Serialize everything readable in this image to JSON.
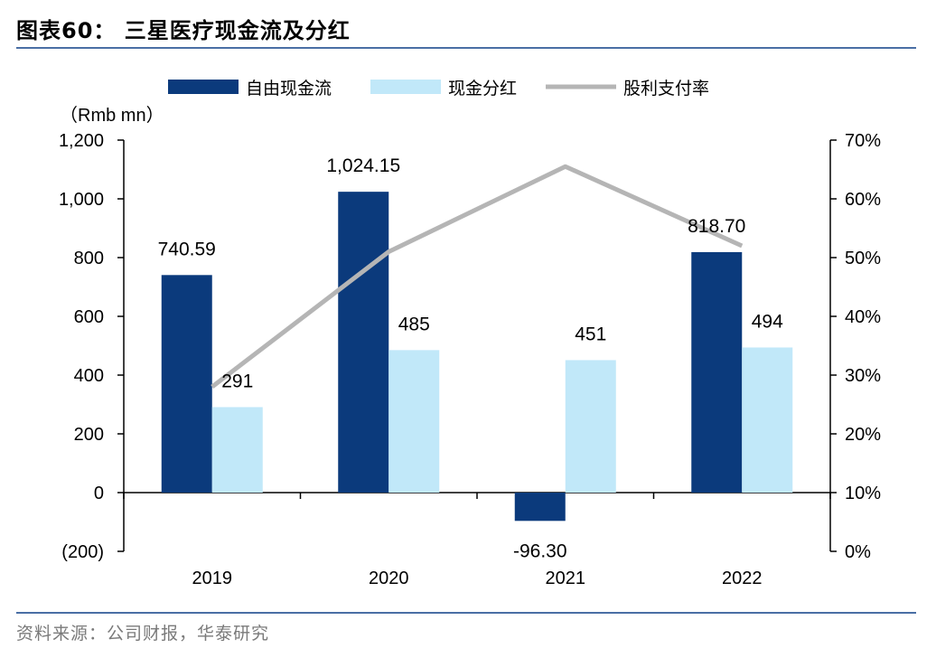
{
  "header": {
    "title": "图表60：  三星医疗现金流及分红"
  },
  "footer": {
    "source": "资料来源：公司财报，华泰研究"
  },
  "chart_data": {
    "type": "bar",
    "categories": [
      "2019",
      "2020",
      "2021",
      "2022"
    ],
    "y_unit_label": "（Rmb mn）",
    "ylim": [
      -200,
      1200
    ],
    "y_ticks": [
      "(200)",
      "0",
      "200",
      "400",
      "600",
      "800",
      "1,000",
      "1,200"
    ],
    "y2lim": [
      0,
      70
    ],
    "y2_ticks": [
      "0%",
      "10%",
      "20%",
      "30%",
      "40%",
      "50%",
      "60%",
      "70%"
    ],
    "grid": false,
    "legend_position": "top",
    "series": [
      {
        "name": "自由现金流",
        "type": "bar",
        "color": "#0b3a7c",
        "values": [
          740.59,
          1024.15,
          -96.3,
          818.7
        ],
        "labels": [
          "740.59",
          "1,024.15",
          "-96.30",
          "818.70"
        ]
      },
      {
        "name": "现金分红",
        "type": "bar",
        "color": "#c1e8f9",
        "values": [
          291,
          485,
          451,
          494
        ],
        "labels": [
          "291",
          "485",
          "451",
          "494"
        ]
      },
      {
        "name": "股利支付率",
        "type": "line",
        "axis": "right",
        "color": "#b5b5b5",
        "values": [
          28,
          51,
          65.5,
          52
        ]
      }
    ]
  }
}
